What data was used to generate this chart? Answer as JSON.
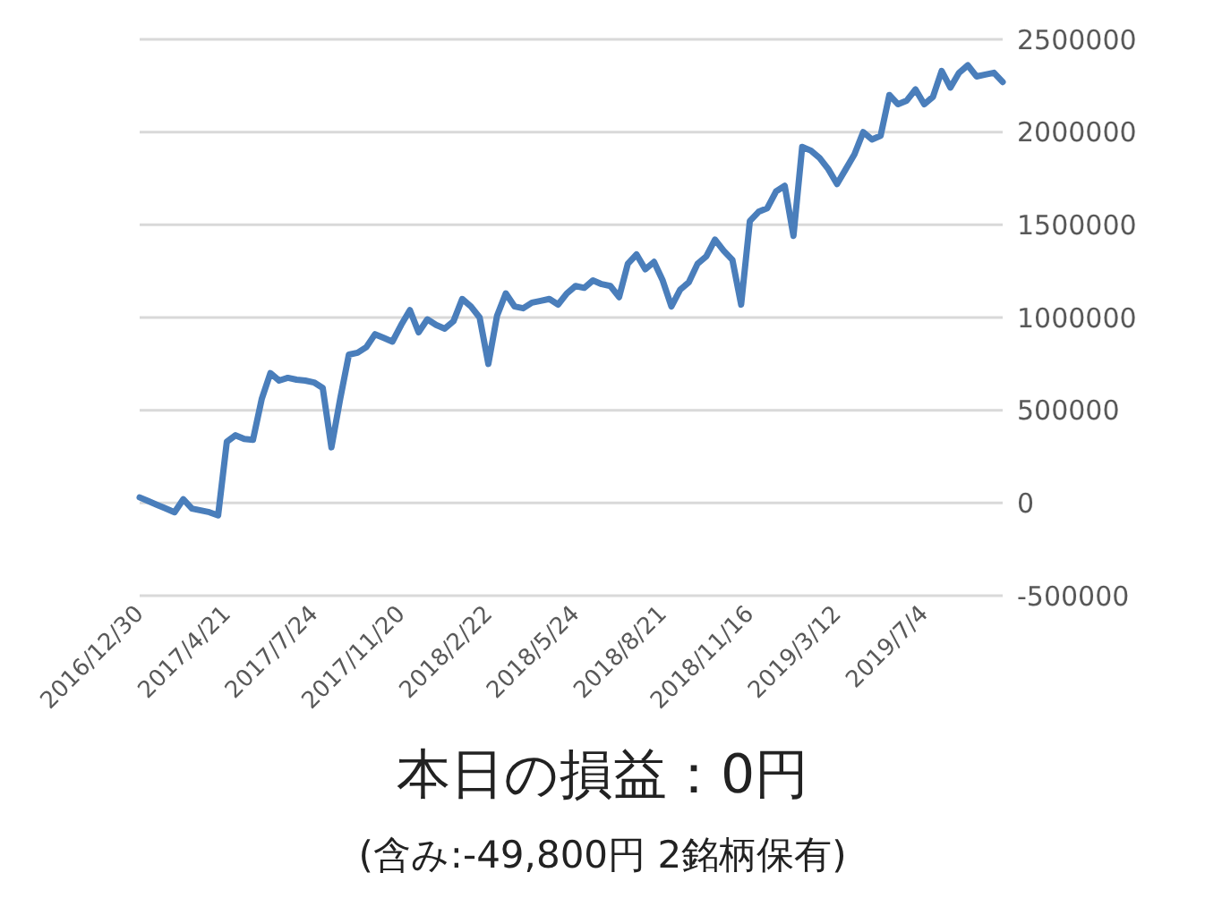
{
  "chart_data": {
    "type": "line",
    "title": "本日の損益：0円",
    "subtitle": "(含み:-49,800円  2銘柄保有)",
    "categories": [
      "2016/12/30",
      null,
      null,
      null,
      null,
      null,
      null,
      null,
      null,
      null,
      "2017/4/21",
      null,
      null,
      null,
      null,
      null,
      null,
      null,
      null,
      null,
      "2017/7/24",
      null,
      null,
      null,
      null,
      null,
      null,
      null,
      null,
      null,
      "2017/11/20",
      null,
      null,
      null,
      null,
      null,
      null,
      null,
      null,
      null,
      "2018/2/22",
      null,
      null,
      null,
      null,
      null,
      null,
      null,
      null,
      null,
      "2018/5/24",
      null,
      null,
      null,
      null,
      null,
      null,
      null,
      null,
      null,
      "2018/8/21",
      null,
      null,
      null,
      null,
      null,
      null,
      null,
      null,
      null,
      "2018/11/16",
      null,
      null,
      null,
      null,
      null,
      null,
      null,
      null,
      null,
      "2019/3/12",
      null,
      null,
      null,
      null,
      null,
      null,
      null,
      null,
      null,
      "2019/7/4",
      null,
      null,
      null,
      null,
      null,
      null,
      null,
      null,
      null
    ],
    "series": [
      {
        "color": "#4a7ebb",
        "values": [
          30000,
          10000,
          -10000,
          -30000,
          -50000,
          20000,
          -30000,
          -40000,
          -50000,
          -67000,
          330000,
          365000,
          345000,
          340000,
          560000,
          700000,
          660000,
          675000,
          665000,
          660000,
          650000,
          620000,
          300000,
          560000,
          800000,
          810000,
          840000,
          910000,
          890000,
          870000,
          960000,
          1040000,
          920000,
          990000,
          960000,
          940000,
          980000,
          1100000,
          1060000,
          1000000,
          750000,
          1010000,
          1130000,
          1060000,
          1050000,
          1080000,
          1090000,
          1100000,
          1070000,
          1130000,
          1170000,
          1160000,
          1200000,
          1180000,
          1170000,
          1110000,
          1290000,
          1340000,
          1260000,
          1300000,
          1200000,
          1060000,
          1150000,
          1190000,
          1290000,
          1330000,
          1420000,
          1360000,
          1310000,
          1070000,
          1520000,
          1570000,
          1590000,
          1680000,
          1710000,
          1440000,
          1920000,
          1900000,
          1860000,
          1800000,
          1720000,
          1800000,
          1880000,
          2000000,
          1960000,
          1980000,
          2200000,
          2150000,
          2170000,
          2230000,
          2150000,
          2190000,
          2330000,
          2240000,
          2320000,
          2360000,
          2300000,
          2310000,
          2320000,
          2270000
        ]
      }
    ],
    "ylim": [
      -500000,
      2500000
    ],
    "yticks": [
      -500000,
      0,
      500000,
      1000000,
      1500000,
      2000000,
      2500000
    ],
    "grid": "y",
    "legend": false,
    "marker": "none",
    "line_style": "solid"
  }
}
